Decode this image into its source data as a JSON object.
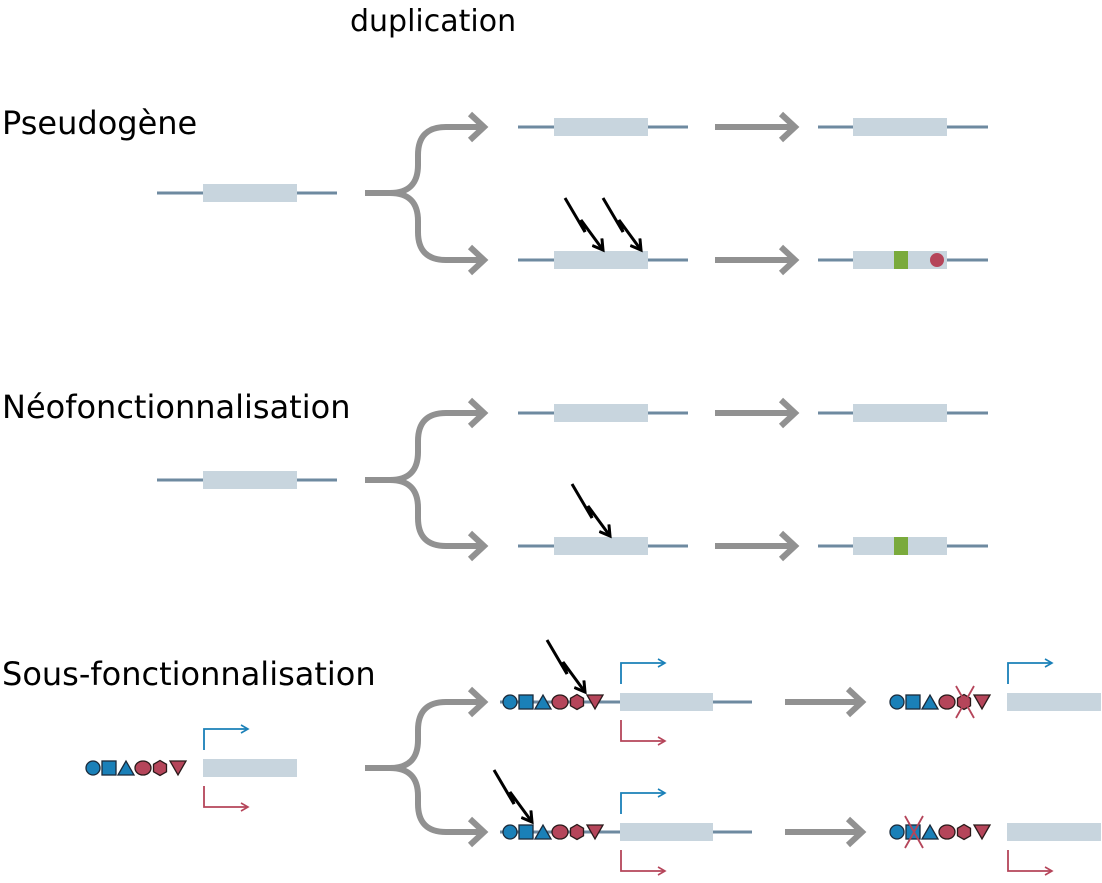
{
  "title": "duplication",
  "sections": [
    {
      "label": "Pseudogène"
    },
    {
      "label": "Néofonctionnalisation"
    },
    {
      "label": "Sous-fonctionnalisation"
    }
  ],
  "colors": {
    "dna_line": "#6e8aa0",
    "gene_box": "#c8d5de",
    "arrow": "#919191",
    "blue": "#1a80b8",
    "red": "#b5455a",
    "green": "#7aaa3c",
    "mutation": "#000000"
  }
}
